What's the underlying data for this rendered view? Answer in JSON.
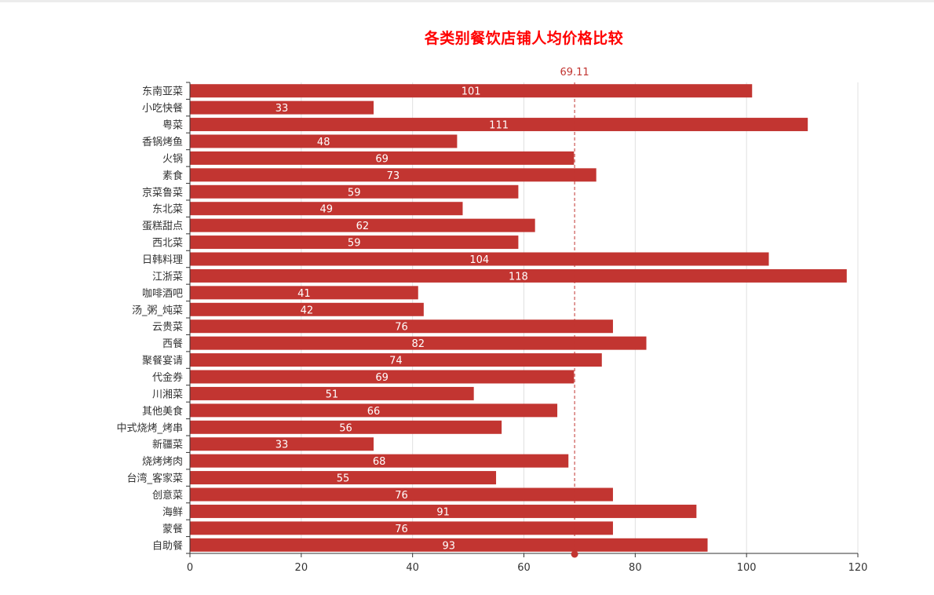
{
  "chart_data": {
    "type": "bar",
    "orientation": "horizontal",
    "title": "各类别餐饮店铺人均价格比较",
    "categories": [
      "东南亚菜",
      "小吃快餐",
      "粤菜",
      "香锅烤鱼",
      "火锅",
      "素食",
      "京菜鲁菜",
      "东北菜",
      "蛋糕甜点",
      "西北菜",
      "日韩料理",
      "江浙菜",
      "咖啡酒吧",
      "汤_粥_炖菜",
      "云贵菜",
      "西餐",
      "聚餐宴请",
      "代金券",
      "川湘菜",
      "其他美食",
      "中式烧烤_烤串",
      "新疆菜",
      "烧烤烤肉",
      "台湾_客家菜",
      "创意菜",
      "海鲜",
      "蒙餐",
      "自助餐"
    ],
    "series": [
      {
        "values": [
          101,
          33,
          111,
          48,
          69,
          73,
          59,
          49,
          62,
          59,
          104,
          118,
          41,
          42,
          76,
          82,
          74,
          69,
          51,
          66,
          56,
          33,
          68,
          55,
          76,
          91,
          76,
          93
        ],
        "color": "#c23531"
      }
    ],
    "mark_line": {
      "value": 69.11,
      "label": "69.11",
      "color": "#c23531"
    },
    "xlim": [
      0,
      120
    ],
    "x_ticks": [
      0,
      20,
      40,
      60,
      80,
      100,
      120
    ],
    "grid": true
  }
}
